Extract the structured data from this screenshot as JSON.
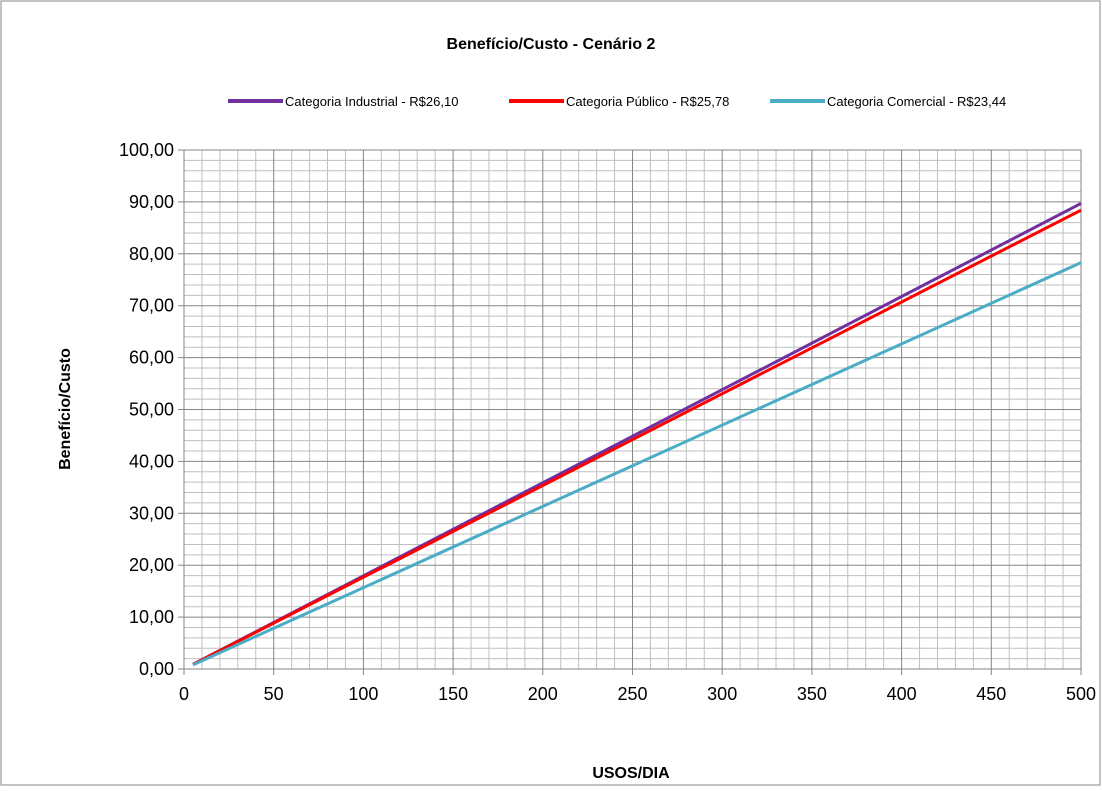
{
  "chart_data": {
    "type": "line",
    "title": "Benefício/Custo - Cenário 2",
    "xlabel": "USOS/DIA",
    "ylabel": "Benefício/Custo",
    "xlim": [
      0,
      500
    ],
    "ylim": [
      0,
      100
    ],
    "x_ticks": [
      "0",
      "50",
      "100",
      "150",
      "200",
      "250",
      "300",
      "350",
      "400",
      "450",
      "500"
    ],
    "y_ticks": [
      "0,00",
      "10,00",
      "20,00",
      "30,00",
      "40,00",
      "50,00",
      "60,00",
      "70,00",
      "80,00",
      "90,00",
      "100,00"
    ],
    "grid": true,
    "legend_position": "top",
    "series": [
      {
        "name": "Categoria Industrial - R$26,10",
        "color": "#7030A0",
        "x": [
          5,
          500
        ],
        "y": [
          0.9,
          89.7
        ]
      },
      {
        "name": "Categoria Público - R$25,78",
        "color": "#FF0000",
        "x": [
          5,
          500
        ],
        "y": [
          0.88,
          88.4
        ]
      },
      {
        "name": "Categoria Comercial - R$23,44",
        "color": "#4BACC6",
        "x": [
          5,
          500
        ],
        "y": [
          0.8,
          78.3
        ]
      }
    ]
  }
}
